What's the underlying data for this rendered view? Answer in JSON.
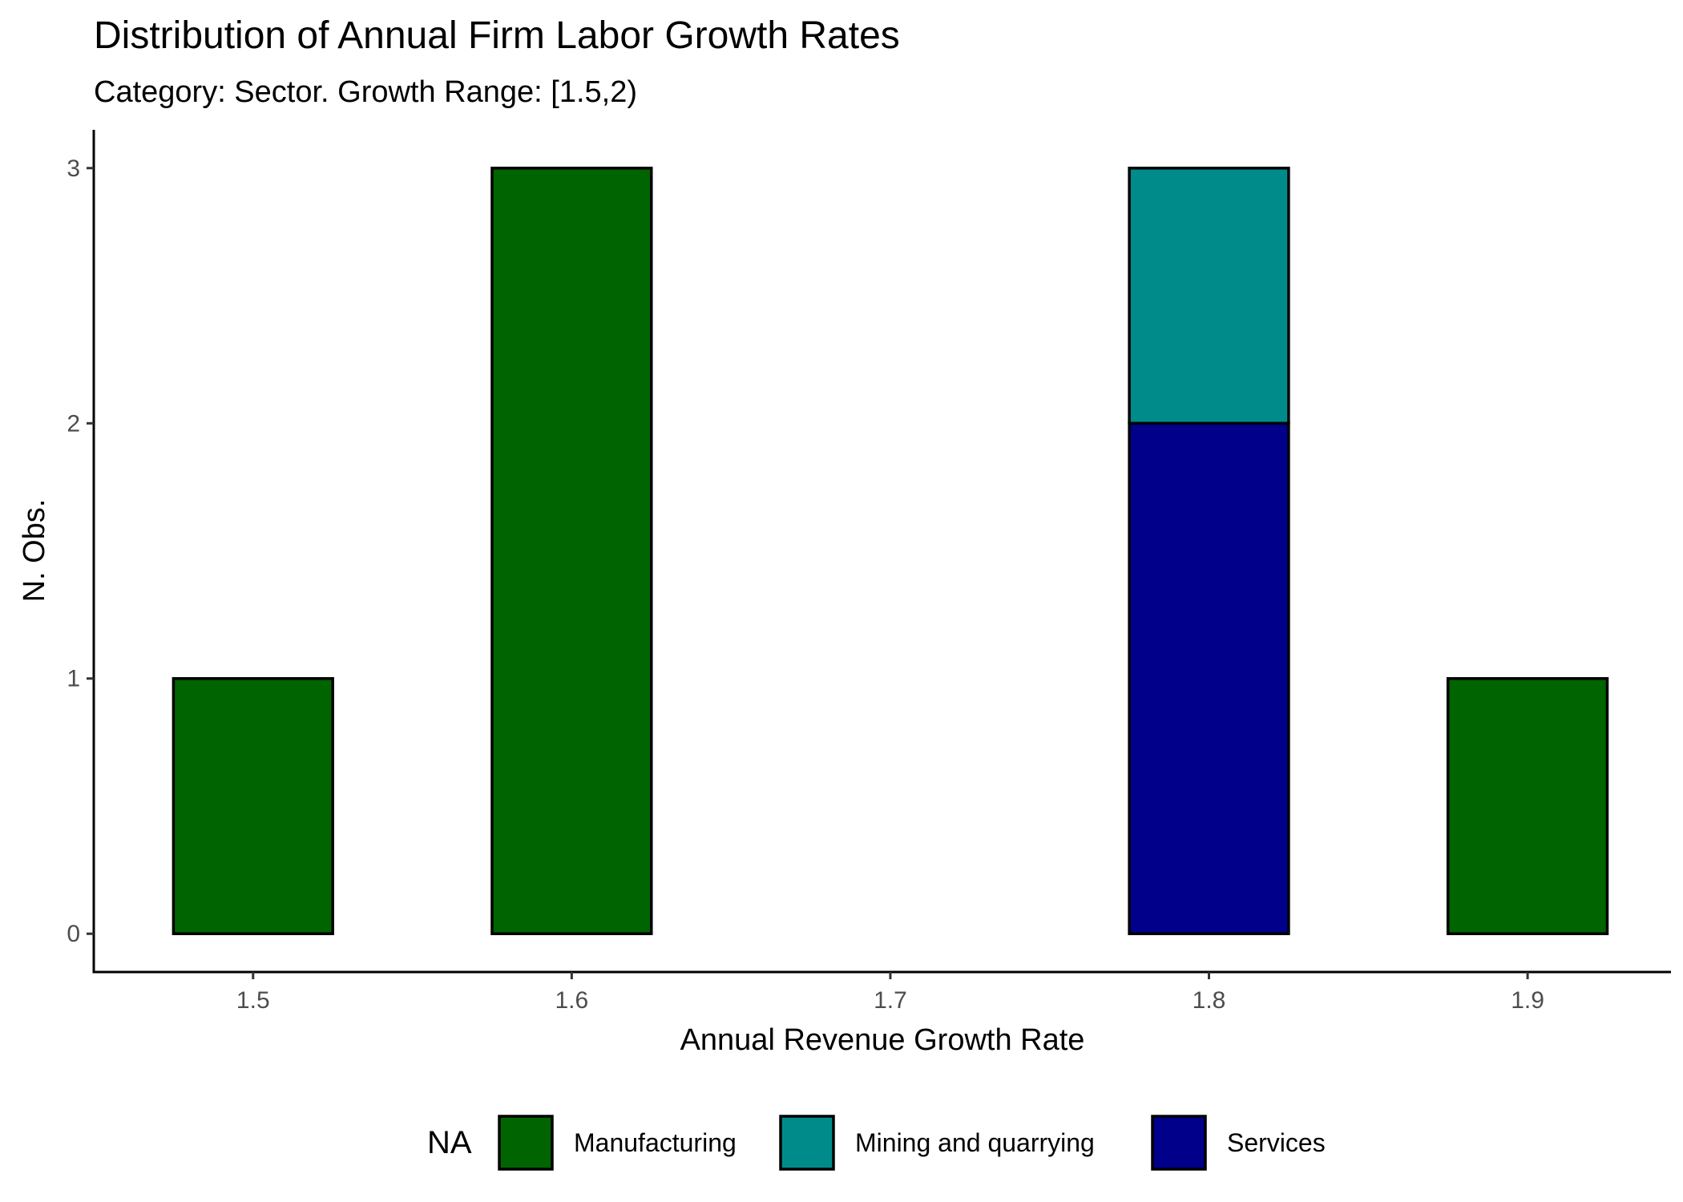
{
  "chart_data": {
    "type": "bar",
    "title": "Distribution of Annual Firm Labor Growth Rates",
    "subtitle": "Category: Sector. Growth Range: [1.5,2)",
    "xlabel": "Annual Revenue Growth Rate",
    "ylabel": "N. Obs.",
    "xlim": [
      1.45,
      1.945
    ],
    "ylim": [
      -0.15,
      3.15
    ],
    "bin_width": 0.05,
    "x_ticks": [
      {
        "value": 1.5,
        "label": "1.5"
      },
      {
        "value": 1.6,
        "label": "1.6"
      },
      {
        "value": 1.7,
        "label": "1.7"
      },
      {
        "value": 1.8,
        "label": "1.8"
      },
      {
        "value": 1.9,
        "label": "1.9"
      }
    ],
    "y_ticks": [
      {
        "value": 0,
        "label": "0"
      },
      {
        "value": 1,
        "label": "1"
      },
      {
        "value": 2,
        "label": "2"
      },
      {
        "value": 3,
        "label": "3"
      }
    ],
    "bin_centers": [
      1.5,
      1.55,
      1.6,
      1.65,
      1.7,
      1.75,
      1.8,
      1.85,
      1.9
    ],
    "series": [
      {
        "name": "Services",
        "color": "#00008B",
        "values": [
          0,
          0,
          0,
          0,
          0,
          0,
          2,
          0,
          0
        ]
      },
      {
        "name": "Mining and quarrying",
        "color": "#008B8B",
        "values": [
          0,
          0,
          0,
          0,
          0,
          0,
          1,
          0,
          0
        ]
      },
      {
        "name": "Manufacturing",
        "color": "#006400",
        "values": [
          1,
          0,
          3,
          0,
          0,
          0,
          0,
          0,
          1
        ]
      }
    ],
    "stacked": true,
    "legend": {
      "title": "NA",
      "position": "bottom",
      "items": [
        {
          "label": "Manufacturing",
          "color": "#006400"
        },
        {
          "label": "Mining and quarrying",
          "color": "#008B8B"
        },
        {
          "label": "Services",
          "color": "#00008B"
        }
      ]
    },
    "grid": false
  }
}
